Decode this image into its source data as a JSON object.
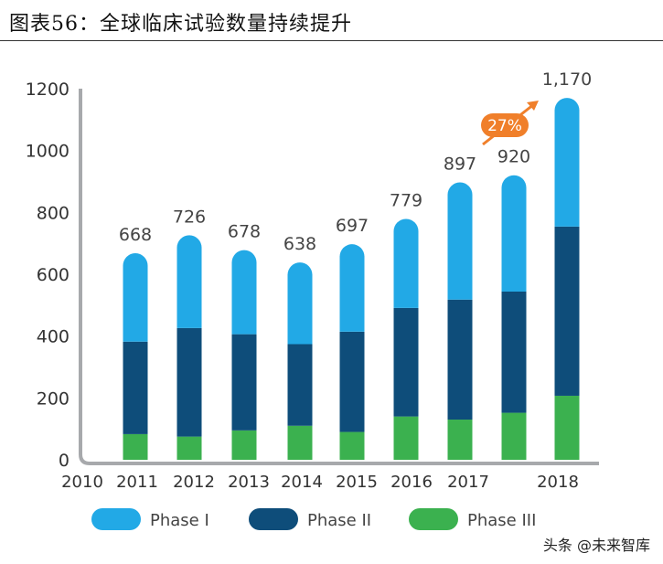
{
  "title": "图表56：全球临床试验数量持续提升",
  "watermark": "头条 @未来智库",
  "chart_data": {
    "type": "bar",
    "stacked": true,
    "categories": [
      "2010",
      "2011",
      "2012",
      "2013",
      "2014",
      "2015",
      "2016",
      "2017",
      "2018"
    ],
    "series": [
      {
        "name": "Phase III",
        "color": "#3bb14f",
        "values": [
          83,
          75,
          95,
          110,
          90,
          140,
          130,
          152,
          207
        ]
      },
      {
        "name": "Phase II",
        "color": "#0e4d7a",
        "values": [
          299,
          351,
          311,
          264,
          324,
          351,
          388,
          392,
          547
        ]
      },
      {
        "name": "Phase I",
        "color": "#22a9e6",
        "values": [
          286,
          300,
          272,
          264,
          283,
          288,
          379,
          376,
          416
        ]
      }
    ],
    "totals": [
      "668",
      "726",
      "678",
      "638",
      "697",
      "779",
      "897",
      "920",
      "1,170"
    ],
    "annotation": {
      "text": "27%",
      "color": "#f07f2a"
    },
    "yticks": [
      0,
      200,
      400,
      600,
      800,
      1000,
      1200
    ],
    "ylim": [
      0,
      1200
    ],
    "legend": [
      "Phase I",
      "Phase II",
      "Phase III"
    ],
    "legend_position": "bottom",
    "grid": false
  }
}
